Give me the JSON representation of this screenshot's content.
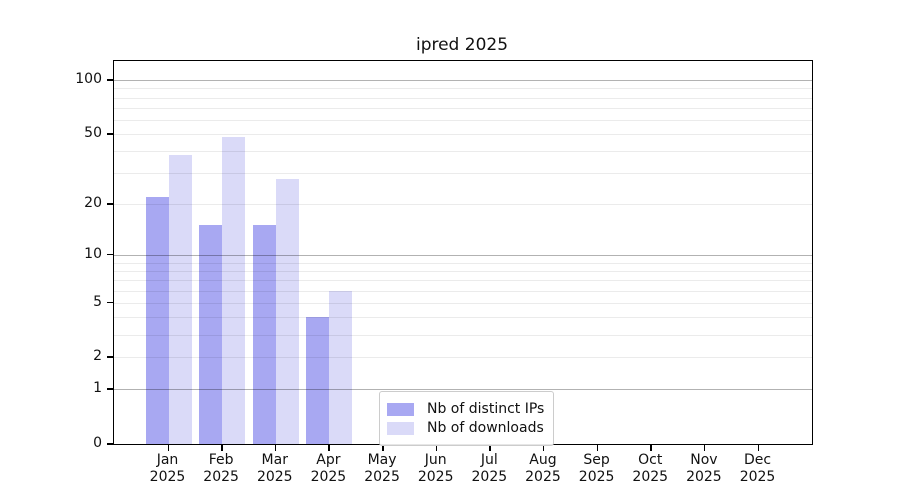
{
  "title": "ipred 2025",
  "legend": {
    "items": [
      {
        "label": "Nb of distinct IPs",
        "color": "#a8a8f2"
      },
      {
        "label": "Nb of downloads",
        "color": "#dadaf8"
      }
    ]
  },
  "chart_data": {
    "type": "bar",
    "title": "ipred 2025",
    "categories": [
      "Jan",
      "Feb",
      "Mar",
      "Apr",
      "May",
      "Jun",
      "Jul",
      "Aug",
      "Sep",
      "Oct",
      "Nov",
      "Dec"
    ],
    "year_label": "2025",
    "series": [
      {
        "name": "Nb of distinct IPs",
        "color": "#a8a8f2",
        "values": [
          22,
          15,
          15,
          4,
          0,
          0,
          0,
          0,
          0,
          0,
          0,
          0
        ]
      },
      {
        "name": "Nb of downloads",
        "color": "#dadaf8",
        "values": [
          38,
          48,
          28,
          6,
          0,
          0,
          0,
          0,
          0,
          0,
          0,
          0
        ]
      }
    ],
    "xlabel": "",
    "ylabel": "",
    "yscale": "log1p",
    "y_ticks": [
      0,
      1,
      2,
      5,
      10,
      20,
      50,
      100
    ],
    "y_minor_gridlines": [
      3,
      4,
      6,
      7,
      8,
      9,
      30,
      40,
      60,
      70,
      80,
      90
    ],
    "y_decade_gridlines": [
      1,
      10,
      100
    ],
    "ylim": [
      0,
      128
    ],
    "grid": true,
    "legend_position": "lower center-left inside plot",
    "bar_colors": {
      "distinct_ips": "#a8a8f2",
      "downloads": "#dadaf8"
    }
  }
}
